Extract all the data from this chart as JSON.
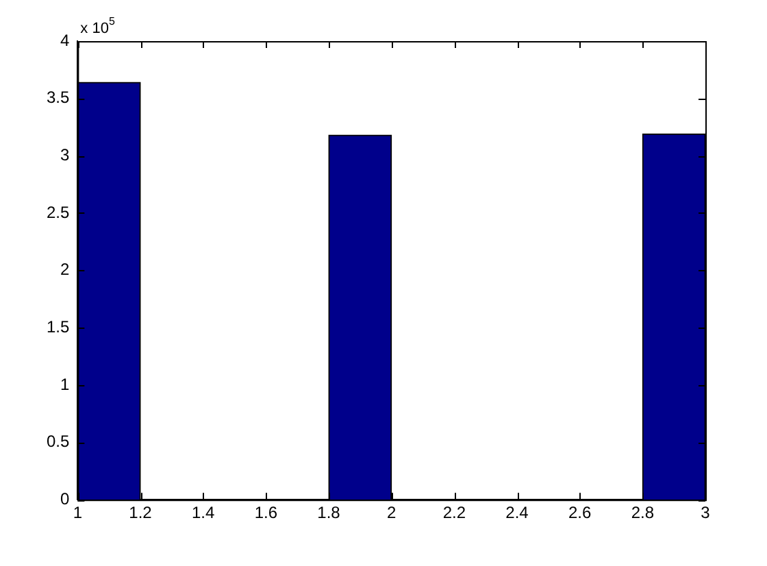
{
  "chart_data": {
    "type": "histogram",
    "bins": [
      1,
      1.2,
      1.4,
      1.6,
      1.8,
      2,
      2.2,
      2.4,
      2.6,
      2.8,
      3
    ],
    "values": [
      3.64,
      0,
      0,
      0,
      3.18,
      0,
      0,
      0,
      0,
      3.19
    ],
    "color": "#00008b",
    "xlim": [
      1,
      3
    ],
    "xticks": [
      1,
      1.2,
      1.4,
      1.6,
      1.8,
      2,
      2.2,
      2.4,
      2.6,
      2.8,
      3
    ],
    "ylim": [
      0,
      4
    ],
    "yticks": [
      0,
      0.5,
      1,
      1.5,
      2,
      2.5,
      3,
      3.5,
      4
    ],
    "annotations": [
      "x 10$^{5}$"
    ],
    "grid": false,
    "legend": false
  }
}
